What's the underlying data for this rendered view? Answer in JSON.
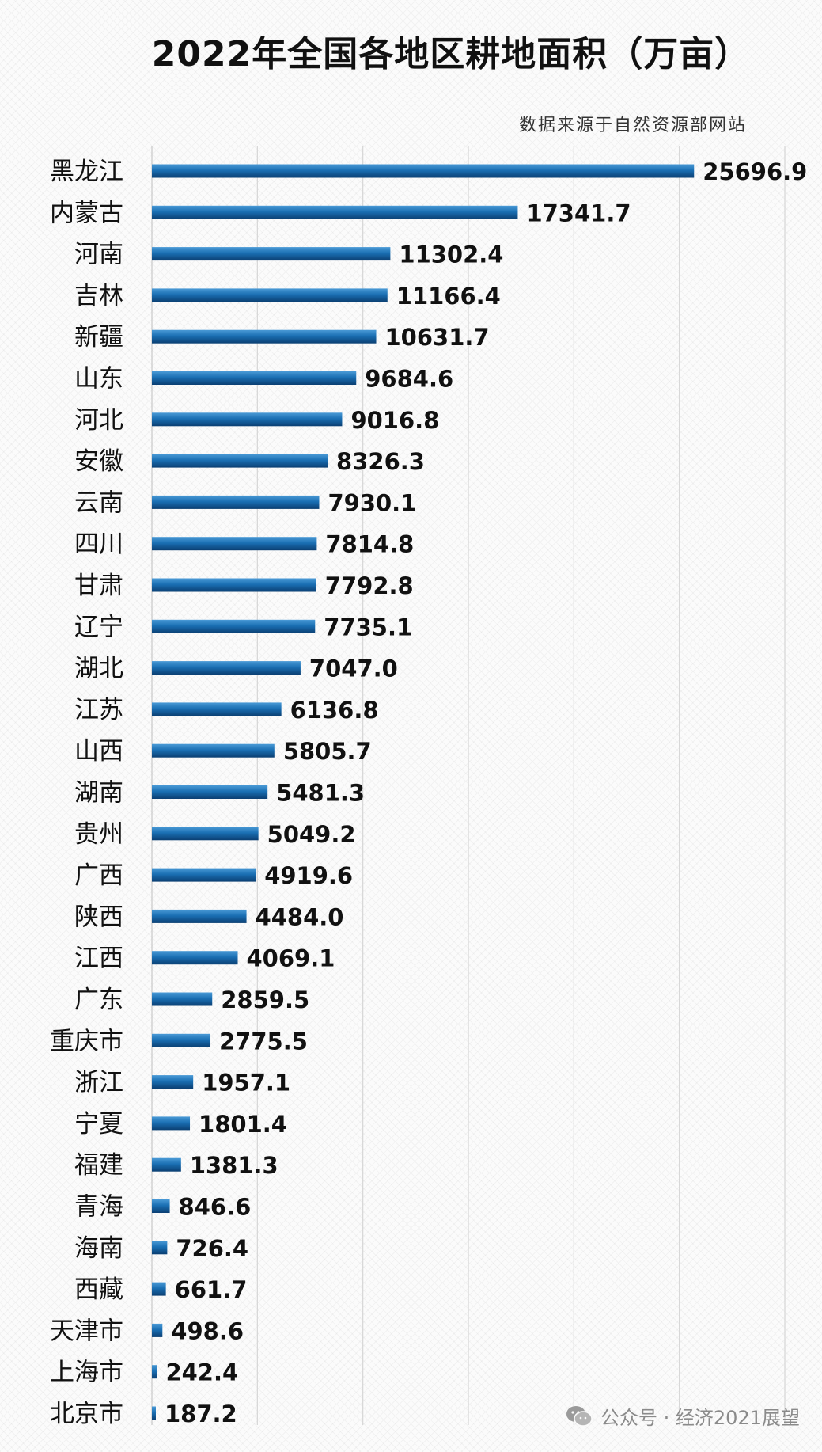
{
  "chart_data": {
    "type": "bar",
    "orientation": "horizontal",
    "title": "2022年全国各地区耕地面积（万亩）",
    "subtitle": "数据来源于自然资源部网站",
    "xlabel": "",
    "ylabel": "",
    "xlim": [
      0,
      30000
    ],
    "grid": true,
    "bar_color": "#1a6fb3",
    "categories": [
      "黑龙江",
      "内蒙古",
      "河南",
      "吉林",
      "新疆",
      "山东",
      "河北",
      "安徽",
      "云南",
      "四川",
      "甘肃",
      "辽宁",
      "湖北",
      "江苏",
      "山西",
      "湖南",
      "贵州",
      "广西",
      "陕西",
      "江西",
      "广东",
      "重庆市",
      "浙江",
      "宁夏",
      "福建",
      "青海",
      "海南",
      "西藏",
      "天津市",
      "上海市",
      "北京市"
    ],
    "values": [
      25696.9,
      17341.7,
      11302.4,
      11166.4,
      10631.7,
      9684.6,
      9016.8,
      8326.3,
      7930.1,
      7814.8,
      7792.8,
      7735.1,
      7047.0,
      6136.8,
      5805.7,
      5481.3,
      5049.2,
      4919.6,
      4484.0,
      4069.1,
      2859.5,
      2775.5,
      1957.1,
      1801.4,
      1381.3,
      846.6,
      726.4,
      661.7,
      498.6,
      242.4,
      187.2
    ],
    "value_labels": [
      "25696.9",
      "17341.7",
      "11302.4",
      "11166.4",
      "10631.7",
      "9684.6",
      "9016.8",
      "8326.3",
      "7930.1",
      "7814.8",
      "7792.8",
      "7735.1",
      "7047.0",
      "6136.8",
      "5805.7",
      "5481.3",
      "5049.2",
      "4919.6",
      "4484.0",
      "4069.1",
      "2859.5",
      "2775.5",
      "1957.1",
      "1801.4",
      "1381.3",
      "846.6",
      "726.4",
      "661.7",
      "498.6",
      "242.4",
      "187.2"
    ]
  },
  "watermark": {
    "icon": "wechat-icon",
    "text": "公众号 · 经济2021展望"
  }
}
